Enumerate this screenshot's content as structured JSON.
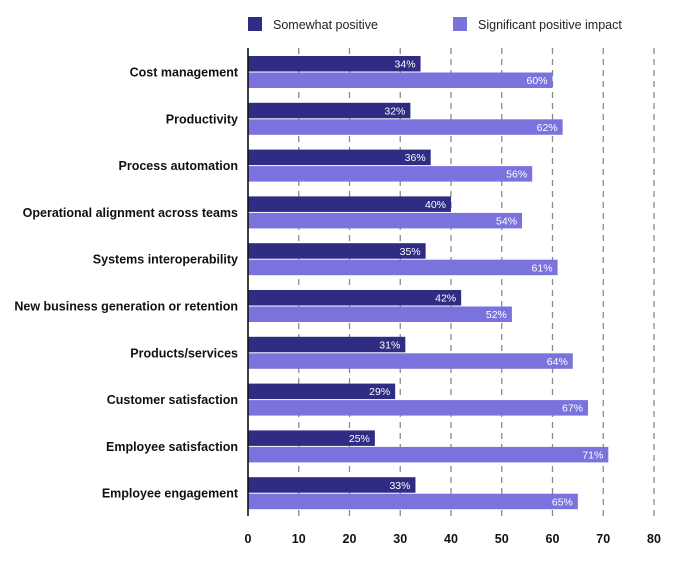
{
  "chart_data": {
    "type": "bar",
    "orientation": "horizontal",
    "categories": [
      "Cost management",
      "Productivity",
      "Process automation",
      "Operational alignment across teams",
      "Systems interoperability",
      "New business generation or retention",
      "Products/services",
      "Customer satisfaction",
      "Employee satisfaction",
      "Employee engagement"
    ],
    "series": [
      {
        "name": "Somewhat positive",
        "color": "#2e2c83",
        "values": [
          34,
          32,
          36,
          40,
          35,
          42,
          31,
          29,
          25,
          33
        ],
        "labels": [
          "34%",
          "32%",
          "36%",
          "40%",
          "35%",
          "42%",
          "31%",
          "29%",
          "25%",
          "33%"
        ]
      },
      {
        "name": "Significant positive impact",
        "color": "#7b73dd",
        "values": [
          60,
          62,
          56,
          54,
          61,
          52,
          64,
          67,
          71,
          65
        ],
        "labels": [
          "60%",
          "62%",
          "56%",
          "54%",
          "61%",
          "52%",
          "64%",
          "67%",
          "71%",
          "65%"
        ]
      }
    ],
    "xlim": [
      0,
      80
    ],
    "xticks": [
      0,
      10,
      20,
      30,
      40,
      50,
      60,
      70,
      80
    ],
    "xtick_labels": [
      "0",
      "10",
      "20",
      "30",
      "40",
      "50",
      "60",
      "70",
      "80"
    ],
    "grid": "vertical-dashed",
    "legend_position": "top",
    "title": "",
    "xlabel": "",
    "ylabel": ""
  }
}
